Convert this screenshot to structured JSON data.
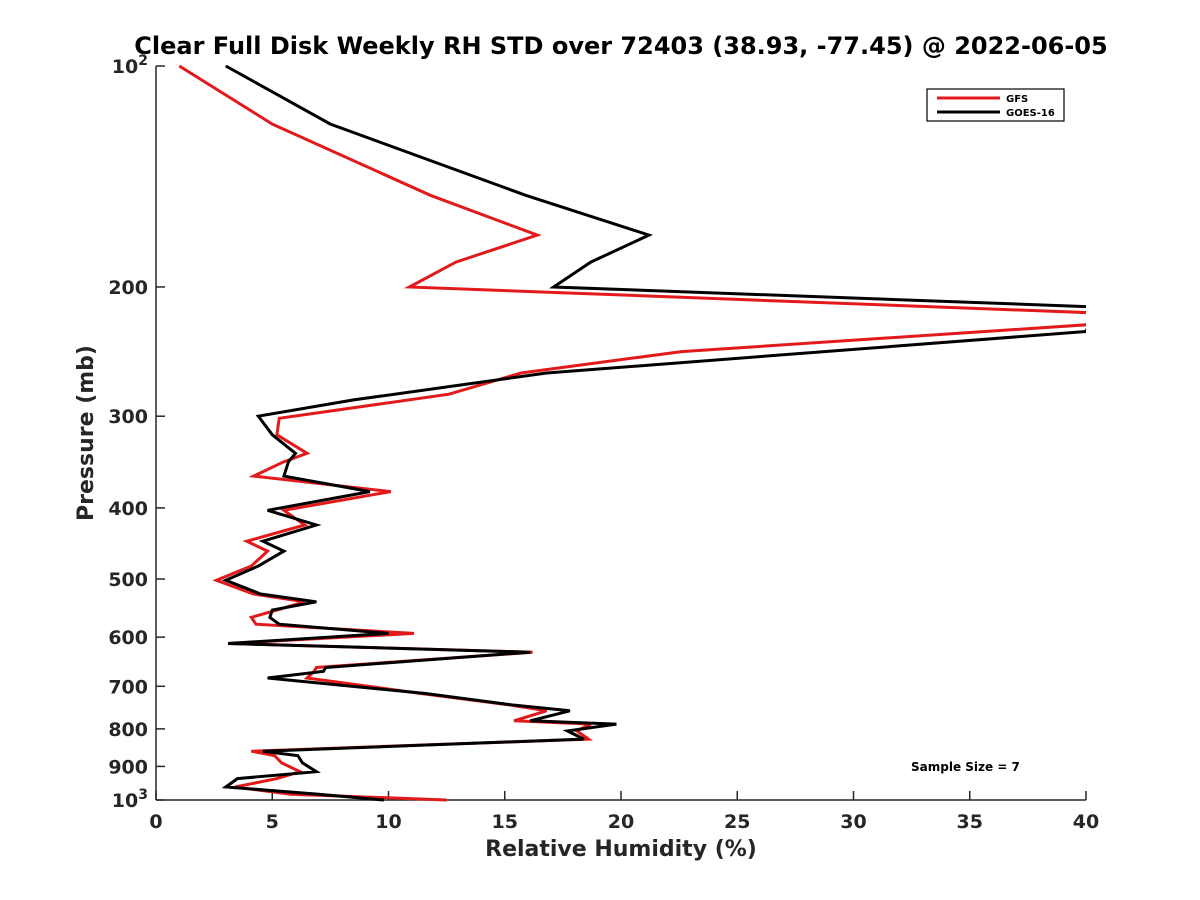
{
  "chart_data": {
    "type": "line",
    "title": "Clear Full Disk Weekly RH STD over 72403 (38.93, -77.45) @ 2022-06-05",
    "xlabel": "Relative Humidity (%)",
    "ylabel": "Pressure (mb)",
    "xlim": [
      0,
      40
    ],
    "ylim": [
      100,
      1000
    ],
    "y_scale": "log",
    "y_reversed": true,
    "grid": false,
    "legend_placement": "top-right",
    "x_ticks": [
      "0",
      "5",
      "10",
      "15",
      "20",
      "25",
      "30",
      "35",
      "40"
    ],
    "y_ticks": [
      {
        "value": 100,
        "base": "10",
        "exp": "2",
        "label": ""
      },
      {
        "value": 200,
        "base": "",
        "exp": "",
        "label": "200"
      },
      {
        "value": 300,
        "base": "",
        "exp": "",
        "label": "300"
      },
      {
        "value": 400,
        "base": "",
        "exp": "",
        "label": "400"
      },
      {
        "value": 500,
        "base": "",
        "exp": "",
        "label": "500"
      },
      {
        "value": 600,
        "base": "",
        "exp": "",
        "label": "600"
      },
      {
        "value": 700,
        "base": "",
        "exp": "",
        "label": "700"
      },
      {
        "value": 800,
        "base": "",
        "exp": "",
        "label": "800"
      },
      {
        "value": 900,
        "base": "",
        "exp": "",
        "label": "900"
      },
      {
        "value": 1000,
        "base": "10",
        "exp": "3",
        "label": ""
      }
    ],
    "annotation": "Sample Size = 7",
    "series": [
      {
        "name": "GFS",
        "color": "#e31a1c",
        "points": [
          [
            1.0,
            100
          ],
          [
            5.0,
            120
          ],
          [
            11.8,
            150
          ],
          [
            16.4,
            170
          ],
          [
            12.9,
            185
          ],
          [
            10.9,
            200
          ],
          [
            40.5,
            217
          ],
          [
            40.2,
            225
          ],
          [
            22.6,
            245
          ],
          [
            15.7,
            262
          ],
          [
            12.6,
            280
          ],
          [
            5.3,
            302
          ],
          [
            5.2,
            318
          ],
          [
            6.5,
            337
          ],
          [
            5.5,
            346
          ],
          [
            4.2,
            362
          ],
          [
            10.1,
            380
          ],
          [
            5.5,
            403
          ],
          [
            6.4,
            422
          ],
          [
            3.9,
            444
          ],
          [
            4.8,
            458
          ],
          [
            4.1,
            480
          ],
          [
            2.6,
            502
          ],
          [
            4.2,
            524
          ],
          [
            6.4,
            537
          ],
          [
            5.2,
            551
          ],
          [
            4.1,
            564
          ],
          [
            4.3,
            576
          ],
          [
            11.1,
            593
          ],
          [
            3.1,
            612
          ],
          [
            16.2,
            629
          ],
          [
            6.9,
            660
          ],
          [
            6.8,
            668
          ],
          [
            6.5,
            682
          ],
          [
            11.4,
            716
          ],
          [
            15.2,
            742
          ],
          [
            16.8,
            756
          ],
          [
            15.4,
            780
          ],
          [
            18.7,
            788
          ],
          [
            18.1,
            805
          ],
          [
            18.6,
            826
          ],
          [
            4.1,
            858
          ],
          [
            5.1,
            870
          ],
          [
            5.4,
            890
          ],
          [
            6.2,
            915
          ],
          [
            5.2,
            935
          ],
          [
            3.4,
            960
          ],
          [
            5.8,
            982
          ],
          [
            12.5,
            1000
          ]
        ]
      },
      {
        "name": "GOES-16",
        "color": "#000000",
        "points": [
          [
            3.0,
            100
          ],
          [
            7.5,
            120
          ],
          [
            15.9,
            150
          ],
          [
            21.2,
            170
          ],
          [
            18.7,
            185
          ],
          [
            17.1,
            200
          ],
          [
            40.5,
            213
          ],
          [
            40.2,
            222
          ],
          [
            40.0,
            230
          ],
          [
            16.8,
            262
          ],
          [
            8.5,
            285
          ],
          [
            4.4,
            300
          ],
          [
            5.0,
            318
          ],
          [
            6.0,
            337
          ],
          [
            5.7,
            346
          ],
          [
            5.5,
            362
          ],
          [
            9.2,
            380
          ],
          [
            4.8,
            403
          ],
          [
            6.9,
            422
          ],
          [
            4.6,
            444
          ],
          [
            5.5,
            458
          ],
          [
            4.4,
            480
          ],
          [
            3.0,
            502
          ],
          [
            4.5,
            524
          ],
          [
            6.9,
            537
          ],
          [
            5.0,
            551
          ],
          [
            4.9,
            564
          ],
          [
            5.3,
            576
          ],
          [
            10.0,
            593
          ],
          [
            3.1,
            612
          ],
          [
            16.1,
            629
          ],
          [
            7.3,
            660
          ],
          [
            7.2,
            668
          ],
          [
            4.8,
            682
          ],
          [
            11.6,
            716
          ],
          [
            15.3,
            742
          ],
          [
            17.8,
            756
          ],
          [
            16.1,
            780
          ],
          [
            19.8,
            788
          ],
          [
            17.7,
            805
          ],
          [
            18.4,
            826
          ],
          [
            4.6,
            858
          ],
          [
            6.1,
            870
          ],
          [
            6.3,
            890
          ],
          [
            6.9,
            915
          ],
          [
            3.5,
            935
          ],
          [
            3.0,
            960
          ],
          [
            7.0,
            982
          ],
          [
            9.8,
            1000
          ]
        ]
      }
    ]
  }
}
